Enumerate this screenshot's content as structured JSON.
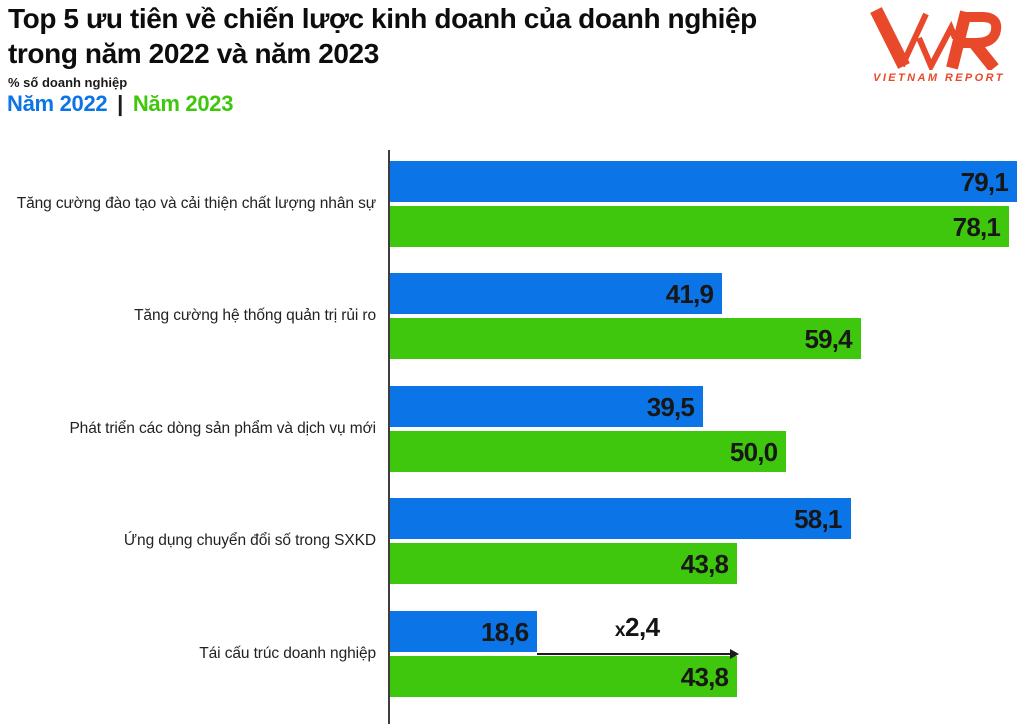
{
  "header": {
    "title_lines": [
      "Top 5 ưu tiên về chiến lược kinh doanh của doanh nghiệp",
      "trong năm 2022 và năm 2023"
    ],
    "subtitle": "% số doanh nghiệp",
    "legend": {
      "year2022": "Năm 2022",
      "separator": "|",
      "year2023": "Năm 2023"
    }
  },
  "logo": {
    "monogram": "VNR",
    "wordmark": "VIETNAM REPORT"
  },
  "colors": {
    "year2022": "#0b74e6",
    "year2023": "#3fc70d",
    "logo": "#e8492b",
    "axis": "#3d3d3d"
  },
  "chart_data": {
    "type": "bar",
    "orientation": "horizontal",
    "title": "Top 5 ưu tiên về chiến lược kinh doanh của doanh nghiệp trong năm 2022 và năm 2023",
    "unit_label": "% số doanh nghiệp",
    "legend_position": "top-left",
    "grid": false,
    "xlim": [
      0,
      79.1
    ],
    "categories": [
      "Tăng cường đào tạo và cải thiện chất lượng nhân sự",
      "Tăng cường hệ thống quản trị rủi ro",
      "Phát triển các dòng sản phẩm và dịch vụ mới",
      "Ứng dụng chuyển đổi số trong SXKD",
      "Tái cấu trúc doanh nghiệp"
    ],
    "series": [
      {
        "name": "Năm 2022",
        "color": "#0b74e6",
        "values": [
          79.1,
          41.9,
          39.5,
          58.1,
          18.6
        ],
        "value_labels": [
          "79,1",
          "41,9",
          "39,5",
          "58,1",
          "18,6"
        ]
      },
      {
        "name": "Năm 2023",
        "color": "#3fc70d",
        "values": [
          78.1,
          59.4,
          50.0,
          43.8,
          43.8
        ],
        "value_labels": [
          "78,1",
          "59,4",
          "50,0",
          "43,8",
          "43,8"
        ]
      }
    ],
    "annotation": {
      "label": "x2,4",
      "label_prefix": "x",
      "label_value": "2,4",
      "category_index": 4,
      "from_value": 18.6,
      "to_value": 43.8
    }
  }
}
